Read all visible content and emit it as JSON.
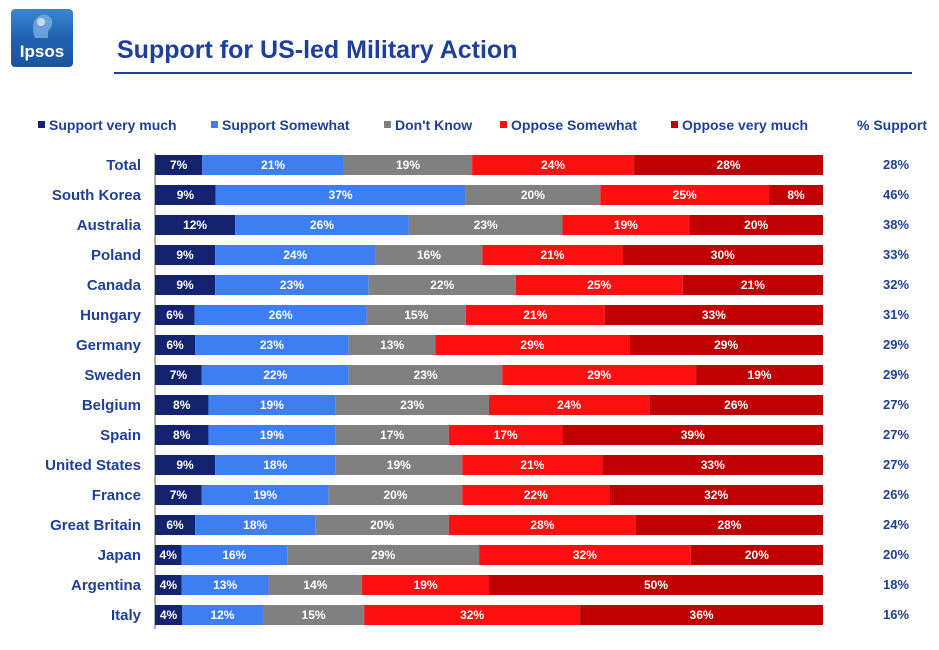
{
  "logo": {
    "text": "Ipsos"
  },
  "title": "Support for US-led Military Action",
  "support_header": "% Support",
  "colors": {
    "series": [
      "#14236f",
      "#3d7ff2",
      "#808080",
      "#ff1010",
      "#c00000"
    ],
    "title": "#1f3f99"
  },
  "chart_data": {
    "type": "bar",
    "orientation": "horizontal",
    "stacked": true,
    "normalized": true,
    "title": "Support for US-led Military Action",
    "categories": [
      "Total",
      "South Korea",
      "Australia",
      "Poland",
      "Canada",
      "Hungary",
      "Germany",
      "Sweden",
      "Belgium",
      "Spain",
      "United States",
      "France",
      "Great Britain",
      "Japan",
      "Argentina",
      "Italy"
    ],
    "series": [
      {
        "name": "Support very much",
        "values": [
          7,
          9,
          12,
          9,
          9,
          6,
          6,
          7,
          8,
          8,
          9,
          7,
          6,
          4,
          4,
          4
        ]
      },
      {
        "name": "Support Somewhat",
        "values": [
          21,
          37,
          26,
          24,
          23,
          26,
          23,
          22,
          19,
          19,
          18,
          19,
          18,
          16,
          13,
          12
        ]
      },
      {
        "name": "Don't Know",
        "values": [
          19,
          20,
          23,
          16,
          22,
          15,
          13,
          23,
          23,
          17,
          19,
          20,
          20,
          29,
          14,
          15
        ]
      },
      {
        "name": "Oppose Somewhat",
        "values": [
          24,
          25,
          19,
          21,
          25,
          21,
          29,
          29,
          24,
          17,
          21,
          22,
          28,
          32,
          19,
          32
        ]
      },
      {
        "name": "Oppose very much",
        "values": [
          28,
          8,
          20,
          30,
          21,
          33,
          29,
          19,
          26,
          39,
          33,
          32,
          28,
          20,
          50,
          36
        ]
      }
    ],
    "support_percent": [
      "28%",
      "46%",
      "38%",
      "33%",
      "32%",
      "31%",
      "29%",
      "29%",
      "27%",
      "27%",
      "27%",
      "26%",
      "24%",
      "20%",
      "18%",
      "16%"
    ],
    "value_suffix": "%",
    "legend_position": "top",
    "grid": false
  }
}
